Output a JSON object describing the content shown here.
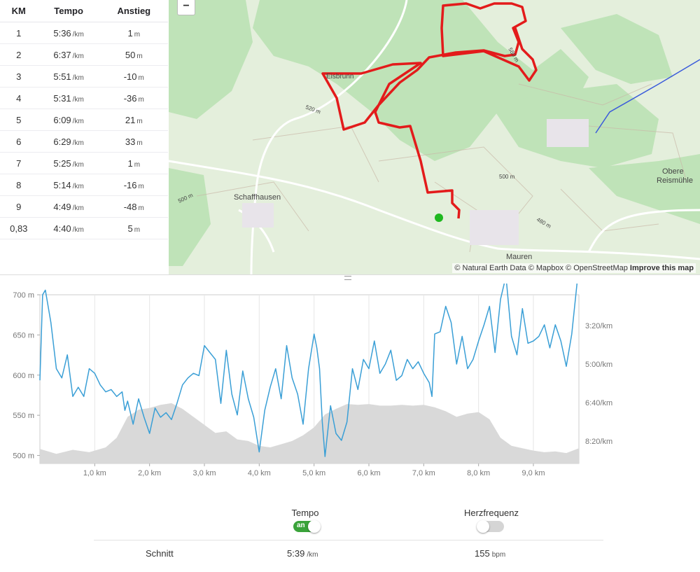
{
  "splits": {
    "headers": {
      "km": "KM",
      "pace": "Tempo",
      "elev": "Anstieg"
    },
    "rows": [
      {
        "km": "1",
        "pace": "5:36",
        "pace_unit": "/km",
        "elev": "1",
        "elev_unit": "m"
      },
      {
        "km": "2",
        "pace": "6:37",
        "pace_unit": "/km",
        "elev": "50",
        "elev_unit": "m"
      },
      {
        "km": "3",
        "pace": "5:51",
        "pace_unit": "/km",
        "elev": "-10",
        "elev_unit": "m"
      },
      {
        "km": "4",
        "pace": "5:31",
        "pace_unit": "/km",
        "elev": "-36",
        "elev_unit": "m"
      },
      {
        "km": "5",
        "pace": "6:09",
        "pace_unit": "/km",
        "elev": "21",
        "elev_unit": "m"
      },
      {
        "km": "6",
        "pace": "6:29",
        "pace_unit": "/km",
        "elev": "33",
        "elev_unit": "m"
      },
      {
        "km": "7",
        "pace": "5:25",
        "pace_unit": "/km",
        "elev": "1",
        "elev_unit": "m"
      },
      {
        "km": "8",
        "pace": "5:14",
        "pace_unit": "/km",
        "elev": "-16",
        "elev_unit": "m"
      },
      {
        "km": "9",
        "pace": "4:49",
        "pace_unit": "/km",
        "elev": "-48",
        "elev_unit": "m"
      },
      {
        "km": "0,83",
        "pace": "4:40",
        "pace_unit": "/km",
        "elev": "5",
        "elev_unit": "m"
      }
    ]
  },
  "map": {
    "zoom_out_label": "−",
    "labels": {
      "place1": "Eisbrunn",
      "place2": "Schaffhausen",
      "place3": "Mauren",
      "place4": "Obere",
      "place5": "Reismühle",
      "c1": "520 m",
      "c2": "580 m",
      "c3": "500 m",
      "c4": "480 m",
      "c5": "500 m"
    },
    "attribution": {
      "text": "© Natural Earth Data © Mapbox © OpenStreetMap",
      "improve": "Improve this map"
    },
    "colors": {
      "route": "#e31b1b",
      "forest": "#bfe3b8",
      "land": "#e4efdc",
      "roads": "#ffffff",
      "railway": "#3b5bdb",
      "start_marker": "#1fb81f"
    }
  },
  "chart_data": {
    "type": "area",
    "x_ticks": [
      "1,0 km",
      "2,0 km",
      "3,0 km",
      "4,0 km",
      "5,0 km",
      "6,0 km",
      "7,0 km",
      "8,0 km",
      "9,0 km"
    ],
    "y_left_ticks": [
      "700 m",
      "650 m",
      "600 m",
      "550 m",
      "500 m"
    ],
    "y_right_ticks": [
      "3:20/km",
      "5:00/km",
      "6:40/km",
      "8:20/km"
    ],
    "xlim": [
      0,
      9.83
    ],
    "ylim_elevation": [
      490,
      700
    ],
    "elevation": {
      "x": [
        0,
        0.3,
        0.6,
        0.9,
        1.2,
        1.4,
        1.6,
        1.8,
        2.0,
        2.2,
        2.4,
        2.6,
        2.8,
        3.0,
        3.2,
        3.4,
        3.6,
        3.8,
        4.0,
        4.2,
        4.4,
        4.6,
        4.8,
        5.0,
        5.2,
        5.4,
        5.6,
        5.8,
        6.0,
        6.2,
        6.4,
        6.6,
        6.8,
        7.0,
        7.2,
        7.4,
        7.6,
        7.8,
        8.0,
        8.2,
        8.4,
        8.6,
        8.8,
        9.0,
        9.2,
        9.4,
        9.6,
        9.83
      ],
      "y": [
        508,
        502,
        507,
        504,
        510,
        522,
        548,
        557,
        559,
        563,
        565,
        558,
        548,
        538,
        528,
        530,
        520,
        518,
        512,
        510,
        514,
        518,
        525,
        535,
        551,
        558,
        564,
        563,
        564,
        562,
        562,
        563,
        562,
        563,
        560,
        555,
        548,
        552,
        554,
        545,
        522,
        512,
        509,
        506,
        504,
        505,
        503,
        509
      ]
    },
    "pace": {
      "x": [
        0,
        0.05,
        0.1,
        0.2,
        0.3,
        0.4,
        0.5,
        0.6,
        0.7,
        0.8,
        0.9,
        1.0,
        1.1,
        1.2,
        1.3,
        1.4,
        1.5,
        1.55,
        1.6,
        1.7,
        1.8,
        1.9,
        2.0,
        2.1,
        2.2,
        2.3,
        2.4,
        2.5,
        2.6,
        2.7,
        2.8,
        2.9,
        3.0,
        3.1,
        3.2,
        3.3,
        3.4,
        3.5,
        3.6,
        3.7,
        3.8,
        3.9,
        4.0,
        4.1,
        4.2,
        4.3,
        4.4,
        4.5,
        4.6,
        4.7,
        4.8,
        4.9,
        5.0,
        5.05,
        5.1,
        5.15,
        5.2,
        5.3,
        5.4,
        5.5,
        5.6,
        5.7,
        5.8,
        5.9,
        6.0,
        6.1,
        6.2,
        6.3,
        6.4,
        6.5,
        6.6,
        6.7,
        6.8,
        6.9,
        7.0,
        7.1,
        7.15,
        7.2,
        7.3,
        7.4,
        7.5,
        7.6,
        7.7,
        7.8,
        7.9,
        8.0,
        8.1,
        8.2,
        8.3,
        8.4,
        8.5,
        8.6,
        8.7,
        8.8,
        8.9,
        9.0,
        9.1,
        9.2,
        9.3,
        9.4,
        9.5,
        9.6,
        9.7,
        9.8
      ],
      "y": [
        5.7,
        2.0,
        1.8,
        3.2,
        5.2,
        5.6,
        4.6,
        6.4,
        6.0,
        6.4,
        5.2,
        5.4,
        5.9,
        6.2,
        6.1,
        6.4,
        6.2,
        7.0,
        6.6,
        7.6,
        6.5,
        7.3,
        8.0,
        6.9,
        7.3,
        7.1,
        7.4,
        6.7,
        5.9,
        5.6,
        5.4,
        5.5,
        4.2,
        4.5,
        4.8,
        6.7,
        4.4,
        6.3,
        7.2,
        5.3,
        6.5,
        7.3,
        8.8,
        7.0,
        6.0,
        5.2,
        6.5,
        4.2,
        5.6,
        6.3,
        7.6,
        5.2,
        3.7,
        4.3,
        5.2,
        7.5,
        9.0,
        6.8,
        8.0,
        8.3,
        7.5,
        5.2,
        6.1,
        4.8,
        5.2,
        4.0,
        5.4,
        5.0,
        4.4,
        5.7,
        5.5,
        4.8,
        5.2,
        4.9,
        5.4,
        5.8,
        6.4,
        3.7,
        3.6,
        2.5,
        3.2,
        5.0,
        3.8,
        5.2,
        4.8,
        4.0,
        3.3,
        2.5,
        4.5,
        2.2,
        1.2,
        3.8,
        4.6,
        2.6,
        4.1,
        4.0,
        3.8,
        3.3,
        4.3,
        3.3,
        4.0,
        5.1,
        3.7,
        1.4
      ],
      "unit": "min/km"
    },
    "colors": {
      "pace_line": "#3a9fd6",
      "elevation_fill": "#d9d9d9"
    },
    "grid": true
  },
  "controls": {
    "tempo_label": "Tempo",
    "tempo_toggle_text": "an",
    "hr_label": "Herzfrequenz"
  },
  "stats": {
    "avg_label": "Schnitt",
    "avg_pace": "5:39",
    "avg_pace_unit": "/km",
    "avg_hr": "155",
    "avg_hr_unit": "bpm"
  }
}
